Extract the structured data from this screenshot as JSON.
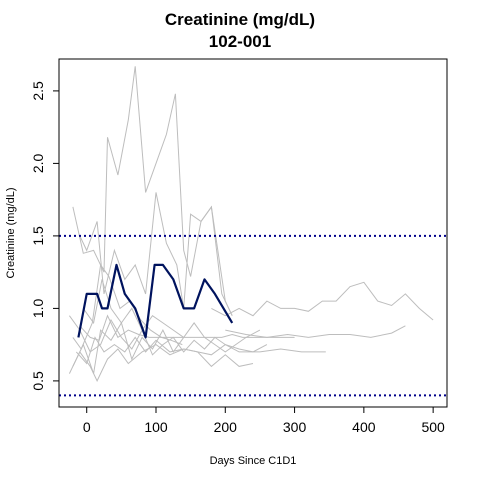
{
  "chart_data": {
    "type": "line",
    "title": "Creatinine (mg/dL)",
    "subtitle": "102-001",
    "xlabel": "Days Since C1D1",
    "ylabel": "Creatinine (mg/dL)",
    "xlim": [
      -40,
      520
    ],
    "ylim": [
      0.32,
      2.72
    ],
    "xticks": [
      0,
      100,
      200,
      300,
      400,
      500
    ],
    "yticks": [
      0.5,
      1.0,
      1.5,
      2.0,
      2.5
    ],
    "xtick_labels": [
      "0",
      "100",
      "200",
      "300",
      "400",
      "500"
    ],
    "ytick_labels": [
      "0.5",
      "1.0",
      "1.5",
      "2.0",
      "2.5"
    ],
    "grid": false,
    "reference_lines": [
      {
        "axis": "y",
        "value": 1.5,
        "style": "dotted",
        "color": "#00008b"
      },
      {
        "axis": "y",
        "value": 0.4,
        "style": "dotted",
        "color": "#00008b"
      }
    ],
    "highlight_color": "#00135e",
    "background_color": "#bdbdbd",
    "highlight": {
      "x": [
        -12,
        0,
        15,
        22,
        30,
        43,
        55,
        70,
        85,
        98,
        110,
        125,
        140,
        155,
        170,
        185,
        210
      ],
      "y": [
        0.8,
        1.1,
        1.1,
        1.0,
        1.0,
        1.3,
        1.1,
        1.0,
        0.8,
        1.3,
        1.3,
        1.2,
        1.0,
        1.0,
        1.2,
        1.1,
        0.9
      ]
    },
    "series": [
      {
        "x": [
          -20,
          -5,
          10,
          25,
          30,
          45,
          60,
          70,
          85,
          100,
          115,
          128,
          140,
          150,
          165,
          180,
          200,
          210
        ],
        "y": [
          1.7,
          1.38,
          1.4,
          1.25,
          2.18,
          1.92,
          2.3,
          2.67,
          1.8,
          2.0,
          2.2,
          2.48,
          1.4,
          1.22,
          1.6,
          1.7,
          1.05,
          0.95
        ]
      },
      {
        "x": [
          -10,
          0,
          15,
          25,
          40,
          55,
          70,
          85,
          100,
          115,
          130,
          140,
          150,
          165,
          180,
          195,
          210
        ],
        "y": [
          1.5,
          1.4,
          1.6,
          1.1,
          1.4,
          1.2,
          1.3,
          1.1,
          1.8,
          1.45,
          1.3,
          1.0,
          1.65,
          1.6,
          1.7,
          1.1,
          0.95
        ]
      },
      {
        "x": [
          180,
          200,
          220,
          240,
          260,
          280,
          300,
          320,
          340,
          360,
          380,
          400,
          420,
          440,
          460,
          480,
          500
        ],
        "y": [
          1.0,
          0.95,
          1.0,
          0.95,
          1.05,
          1.0,
          1.0,
          0.98,
          1.05,
          1.05,
          1.15,
          1.18,
          1.05,
          1.02,
          1.1,
          1.0,
          0.92
        ]
      },
      {
        "x": [
          200,
          230,
          260,
          290,
          320,
          350,
          380,
          410,
          440,
          460
        ],
        "y": [
          0.85,
          0.82,
          0.8,
          0.82,
          0.8,
          0.82,
          0.82,
          0.8,
          0.83,
          0.88
        ]
      },
      {
        "x": [
          -25,
          -10,
          5,
          20,
          35,
          50,
          65,
          80,
          95,
          110,
          125,
          140,
          155,
          170,
          185,
          200,
          220,
          240,
          260
        ],
        "y": [
          0.95,
          0.85,
          0.7,
          0.75,
          0.92,
          0.8,
          0.72,
          0.85,
          0.68,
          0.75,
          0.8,
          0.7,
          0.78,
          0.72,
          0.8,
          0.75,
          0.72,
          0.7,
          0.75
        ]
      },
      {
        "x": [
          -20,
          -5,
          10,
          20,
          35,
          50,
          65,
          80,
          95,
          110,
          125,
          140
        ],
        "y": [
          0.6,
          0.75,
          0.55,
          0.85,
          0.78,
          0.9,
          0.65,
          0.8,
          0.72,
          0.85,
          0.7,
          0.8
        ]
      },
      {
        "x": [
          -15,
          0,
          12,
          25,
          40,
          55,
          70,
          85,
          100,
          120,
          140,
          160,
          180,
          200,
          220,
          250,
          280,
          310,
          345
        ],
        "y": [
          0.7,
          0.62,
          0.8,
          0.7,
          0.75,
          0.7,
          0.8,
          0.7,
          0.78,
          0.7,
          0.72,
          0.7,
          0.68,
          0.75,
          0.7,
          0.7,
          0.72,
          0.7,
          0.7
        ]
      },
      {
        "x": [
          -10,
          5,
          18,
          30,
          45,
          60,
          75,
          90,
          105,
          120,
          135,
          150,
          165,
          180,
          195,
          210,
          225,
          240,
          255,
          270,
          285,
          300
        ],
        "y": [
          0.88,
          0.8,
          0.78,
          0.95,
          0.8,
          0.85,
          0.82,
          0.8,
          0.8,
          0.8,
          0.8,
          0.8,
          0.8,
          0.8,
          0.8,
          0.82,
          0.8,
          0.8,
          0.8,
          0.8,
          0.8,
          0.8
        ]
      },
      {
        "x": [
          -25,
          -10,
          5,
          15,
          30,
          45,
          60,
          80,
          100,
          120,
          140,
          160,
          180,
          200,
          220,
          240
        ],
        "y": [
          0.55,
          0.7,
          0.6,
          0.5,
          0.65,
          0.72,
          0.62,
          0.7,
          0.75,
          0.68,
          0.72,
          0.7,
          0.6,
          0.68,
          0.6,
          0.62
        ]
      },
      {
        "x": [
          -5,
          10,
          22,
          35,
          50,
          65,
          80,
          95,
          110,
          125,
          140,
          155,
          170,
          185,
          200,
          215,
          230,
          250
        ],
        "y": [
          1.0,
          0.9,
          1.2,
          1.0,
          0.9,
          1.0,
          0.85,
          0.95,
          0.9,
          0.85,
          0.8,
          0.9,
          0.8,
          0.75,
          0.7,
          0.75,
          0.8,
          0.85
        ]
      },
      {
        "x": [
          -20,
          -8,
          8,
          20,
          32,
          48,
          62,
          78,
          92,
          108,
          122,
          138
        ],
        "y": [
          0.8,
          0.72,
          0.9,
          1.3,
          1.22,
          1.0,
          1.05,
          0.92,
          0.85,
          0.8,
          0.78,
          0.75
        ]
      }
    ]
  }
}
